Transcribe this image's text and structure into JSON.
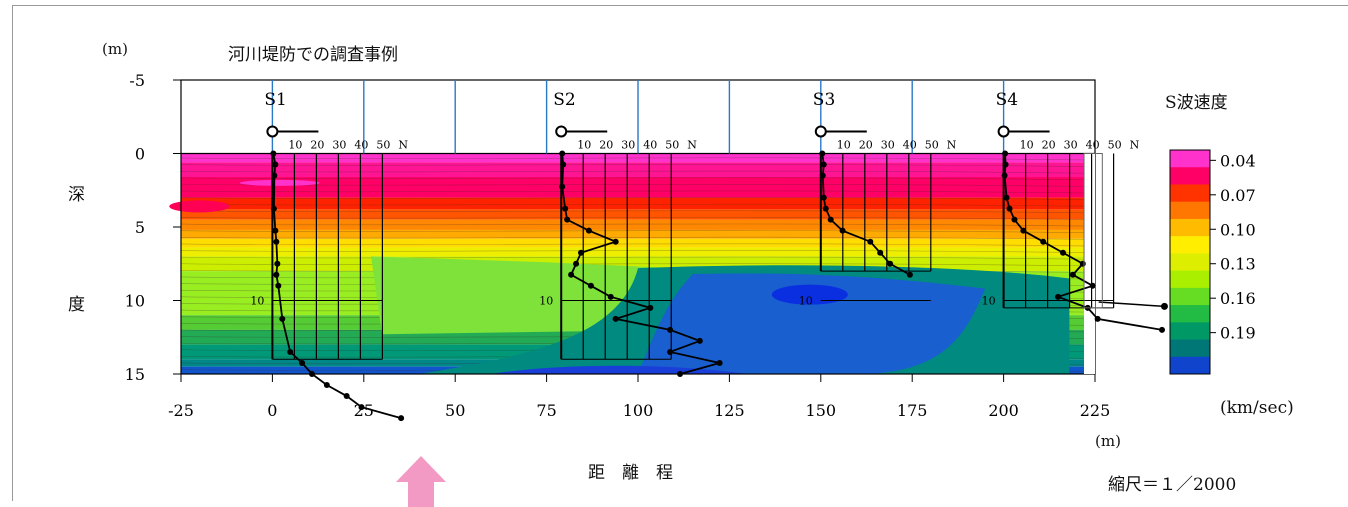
{
  "chart_data": {
    "type": "heatmap",
    "title": "河川堤防での調査事例",
    "xlabel": "距　離　程",
    "x_unit": "(m)",
    "ylabel_chars": [
      "深",
      "度"
    ],
    "y_unit": "(m)",
    "xlim": [
      -25,
      225
    ],
    "ylim": [
      -5,
      15
    ],
    "x_ticks": [
      -25,
      0,
      25,
      50,
      75,
      100,
      125,
      150,
      175,
      200,
      225
    ],
    "y_ticks": [
      -5,
      0,
      5,
      10,
      15
    ],
    "legend": {
      "title": "S波速度",
      "unit": "(km/sec)",
      "tick_labels": [
        "0.04",
        "0.07",
        "0.10",
        "0.13",
        "0.16",
        "0.19"
      ],
      "colors": [
        "#ff33cc",
        "#ff0066",
        "#ff3300",
        "#ff7700",
        "#ffbb00",
        "#ffee00",
        "#ddee00",
        "#aaee00",
        "#66dd22",
        "#22bb44",
        "#009966",
        "#007777",
        "#1144cc"
      ]
    },
    "velocity_layers": [
      {
        "depth_top": 0,
        "depth_bottom": 0.5,
        "vs": 0.04
      },
      {
        "depth_top": 0.5,
        "depth_bottom": 3,
        "vs": 0.055
      },
      {
        "depth_top": 3,
        "depth_bottom": 5,
        "vs": 0.085
      },
      {
        "depth_top": 5,
        "depth_bottom": 7,
        "vs": 0.12
      },
      {
        "depth_top": 7,
        "depth_bottom": 11,
        "vs": 0.16
      },
      {
        "depth_top": 11,
        "depth_bottom": 14,
        "vs": 0.18
      },
      {
        "depth_top": 14,
        "depth_bottom": 15,
        "vs": 0.2
      }
    ],
    "soundings": [
      {
        "name": "S1",
        "x": 0
      },
      {
        "name": "S2",
        "x": 79
      },
      {
        "name": "S3",
        "x": 150
      },
      {
        "name": "S4",
        "x": 200
      }
    ],
    "n_scale_labels": [
      "10",
      "20",
      "30",
      "40",
      "50",
      "N"
    ],
    "depth_marker": "10",
    "scale_text": "縮尺＝１／2000"
  }
}
